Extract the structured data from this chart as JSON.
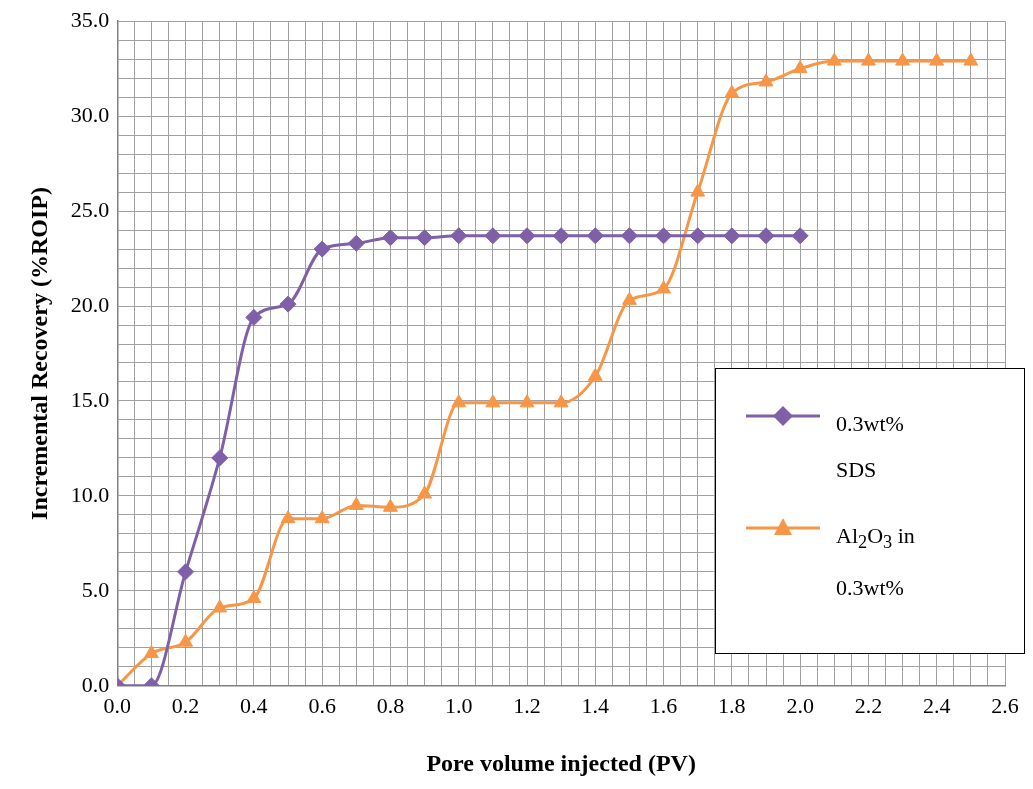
{
  "chart_data": {
    "type": "line",
    "xlabel": "Pore volume injected (PV)",
    "ylabel": "Incremental Recovery (%ROIP)",
    "x": [
      0,
      0.1,
      0.2,
      0.3,
      0.4,
      0.5,
      0.6,
      0.7,
      0.8,
      0.9,
      1.0,
      1.1,
      1.2,
      1.3,
      1.4,
      1.5,
      1.6,
      1.7,
      1.8,
      1.9,
      2.0,
      2.1,
      2.2,
      2.3,
      2.4,
      2.5
    ],
    "series": [
      {
        "name": "0.3wt% SDS",
        "color": "#7f60a8",
        "marker": "diamond",
        "x": [
          0,
          0.1,
          0.2,
          0.3,
          0.4,
          0.5,
          0.6,
          0.7,
          0.8,
          0.9,
          1.0,
          1.1,
          1.2,
          1.3,
          1.4,
          1.5,
          1.6,
          1.7,
          1.8,
          1.9,
          2.0
        ],
        "values": [
          0,
          0,
          6.0,
          12.0,
          19.4,
          20.1,
          23.0,
          23.3,
          23.6,
          23.6,
          23.7,
          23.7,
          23.7,
          23.7,
          23.7,
          23.7,
          23.7,
          23.7,
          23.7,
          23.7,
          23.7
        ]
      },
      {
        "name": "Al$_{2}$O$_{3}$ in 0.3wt%",
        "color": "#f79646",
        "marker": "triangle",
        "values": [
          0,
          1.7,
          2.3,
          4.1,
          4.6,
          8.8,
          8.8,
          9.5,
          9.4,
          10.1,
          14.9,
          14.9,
          14.9,
          14.9,
          16.3,
          20.3,
          20.9,
          26.0,
          31.2,
          31.8,
          32.5,
          32.9,
          32.9,
          32.9,
          32.9,
          32.9
        ]
      }
    ],
    "xlim": [
      0,
      2.6
    ],
    "xticks": [
      {
        "value": 0,
        "label": "0.0"
      },
      {
        "value": 0.05,
        "label": null
      },
      {
        "value": 0.1,
        "label": null
      },
      {
        "value": 0.15,
        "label": null
      },
      {
        "value": 0.2,
        "label": "0.2"
      },
      {
        "value": 0.25,
        "label": null
      },
      {
        "value": 0.3,
        "label": null
      },
      {
        "value": 0.35,
        "label": null
      },
      {
        "value": 0.4,
        "label": "0.4"
      },
      {
        "value": 0.45,
        "label": null
      },
      {
        "value": 0.5,
        "label": null
      },
      {
        "value": 0.55,
        "label": null
      },
      {
        "value": 0.6,
        "label": "0.6"
      },
      {
        "value": 0.65,
        "label": null
      },
      {
        "value": 0.7,
        "label": null
      },
      {
        "value": 0.75,
        "label": null
      },
      {
        "value": 0.8,
        "label": "0.8"
      },
      {
        "value": 0.85,
        "label": null
      },
      {
        "value": 0.9,
        "label": null
      },
      {
        "value": 0.95,
        "label": null
      },
      {
        "value": 1.0,
        "label": "1.0"
      },
      {
        "value": 1.05,
        "label": null
      },
      {
        "value": 1.1,
        "label": null
      },
      {
        "value": 1.15,
        "label": null
      },
      {
        "value": 1.2,
        "label": "1.2"
      },
      {
        "value": 1.25,
        "label": null
      },
      {
        "value": 1.3,
        "label": null
      },
      {
        "value": 1.35,
        "label": null
      },
      {
        "value": 1.4,
        "label": "1.4"
      },
      {
        "value": 1.45,
        "label": null
      },
      {
        "value": 1.5,
        "label": null
      },
      {
        "value": 1.55,
        "label": null
      },
      {
        "value": 1.6,
        "label": "1.6"
      },
      {
        "value": 1.65,
        "label": null
      },
      {
        "value": 1.7,
        "label": null
      },
      {
        "value": 1.75,
        "label": null
      },
      {
        "value": 1.8,
        "label": "1.8"
      },
      {
        "value": 1.85,
        "label": null
      },
      {
        "value": 1.9,
        "label": null
      },
      {
        "value": 1.95,
        "label": null
      },
      {
        "value": 2.0,
        "label": "2.0"
      },
      {
        "value": 2.05,
        "label": null
      },
      {
        "value": 2.1,
        "label": null
      },
      {
        "value": 2.15,
        "label": null
      },
      {
        "value": 2.2,
        "label": "2.2"
      },
      {
        "value": 2.25,
        "label": null
      },
      {
        "value": 2.3,
        "label": null
      },
      {
        "value": 2.35,
        "label": null
      },
      {
        "value": 2.4,
        "label": "2.4"
      },
      {
        "value": 2.45,
        "label": null
      },
      {
        "value": 2.5,
        "label": null
      },
      {
        "value": 2.55,
        "label": null
      },
      {
        "value": 2.6,
        "label": "2.6"
      }
    ],
    "ylim": [
      0,
      35
    ],
    "yticks": [
      {
        "value": 0,
        "label": "0.0"
      },
      {
        "value": 1,
        "label": null
      },
      {
        "value": 2,
        "label": null
      },
      {
        "value": 3,
        "label": null
      },
      {
        "value": 4,
        "label": null
      },
      {
        "value": 5,
        "label": "5.0"
      },
      {
        "value": 6,
        "label": null
      },
      {
        "value": 7,
        "label": null
      },
      {
        "value": 8,
        "label": null
      },
      {
        "value": 9,
        "label": null
      },
      {
        "value": 10,
        "label": "10.0"
      },
      {
        "value": 11,
        "label": null
      },
      {
        "value": 12,
        "label": null
      },
      {
        "value": 13,
        "label": null
      },
      {
        "value": 14,
        "label": null
      },
      {
        "value": 15,
        "label": "15.0"
      },
      {
        "value": 16,
        "label": null
      },
      {
        "value": 17,
        "label": null
      },
      {
        "value": 18,
        "label": null
      },
      {
        "value": 19,
        "label": null
      },
      {
        "value": 20,
        "label": "20.0"
      },
      {
        "value": 21,
        "label": null
      },
      {
        "value": 22,
        "label": null
      },
      {
        "value": 23,
        "label": null
      },
      {
        "value": 24,
        "label": null
      },
      {
        "value": 25,
        "label": "25.0"
      },
      {
        "value": 26,
        "label": null
      },
      {
        "value": 27,
        "label": null
      },
      {
        "value": 28,
        "label": null
      },
      {
        "value": 29,
        "label": null
      },
      {
        "value": 30,
        "label": "30.0"
      },
      {
        "value": 31,
        "label": null
      },
      {
        "value": 32,
        "label": null
      },
      {
        "value": 33,
        "label": null
      },
      {
        "value": 34,
        "label": null
      },
      {
        "value": 35,
        "label": "35.0"
      }
    ],
    "grid": true,
    "legend": "right",
    "line_style": "solid"
  }
}
